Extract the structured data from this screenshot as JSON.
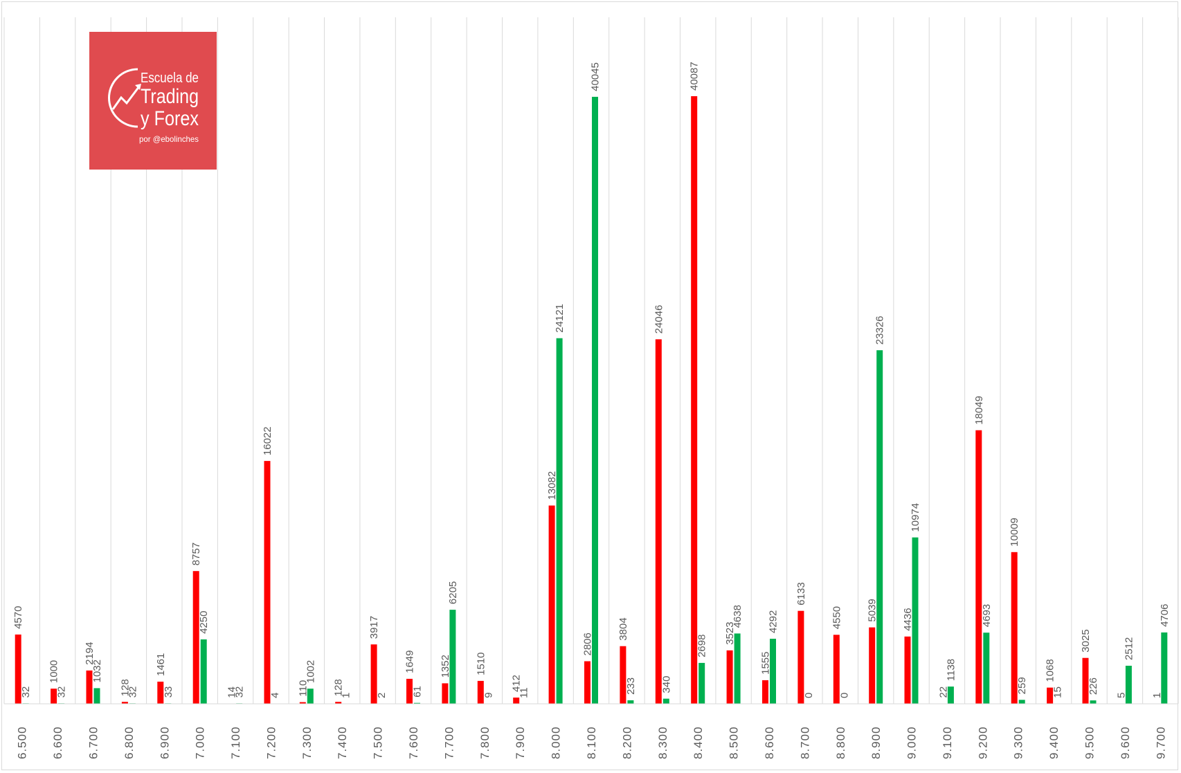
{
  "chart_data": {
    "type": "bar",
    "categories": [
      "6.500",
      "6.600",
      "6.700",
      "6.800",
      "6.900",
      "7.000",
      "7.100",
      "7.200",
      "7.300",
      "7.400",
      "7.500",
      "7.600",
      "7.700",
      "7.800",
      "7.900",
      "8.000",
      "8.100",
      "8.200",
      "8.300",
      "8.400",
      "8.500",
      "8.600",
      "8.700",
      "8.800",
      "8.900",
      "9.000",
      "9.100",
      "9.200",
      "9.300",
      "9.400",
      "9.500",
      "9.600",
      "9.700"
    ],
    "series": [
      {
        "color": "#ff0000",
        "values": [
          4570,
          1000,
          2194,
          128,
          1461,
          8757,
          14,
          16022,
          110,
          128,
          3917,
          1649,
          1352,
          1510,
          412,
          13082,
          2806,
          3804,
          24046,
          40087,
          3523,
          1555,
          6133,
          4550,
          5039,
          4436,
          22,
          18049,
          10009,
          1068,
          3025,
          5,
          1
        ]
      },
      {
        "color": "#00b050",
        "values": [
          32,
          32,
          1032,
          32,
          33,
          4250,
          32,
          4,
          1002,
          1,
          2,
          61,
          6205,
          9,
          11,
          24121,
          40045,
          233,
          340,
          2698,
          4638,
          4292,
          0,
          0,
          23326,
          10974,
          1138,
          4693,
          259,
          15,
          226,
          2512,
          4706
        ]
      }
    ],
    "ylim": [
      0,
      44000
    ],
    "grid": "vertical",
    "legend": "none"
  },
  "logo": {
    "line1": "Escuela de",
    "line2": "Trading",
    "line3": "y Forex",
    "line4": "por @ebolinches",
    "bg": "#e04b4f"
  },
  "colors": {
    "grid": "#d9d9d9",
    "label": "#595959",
    "axis": "#d9d9d9"
  }
}
